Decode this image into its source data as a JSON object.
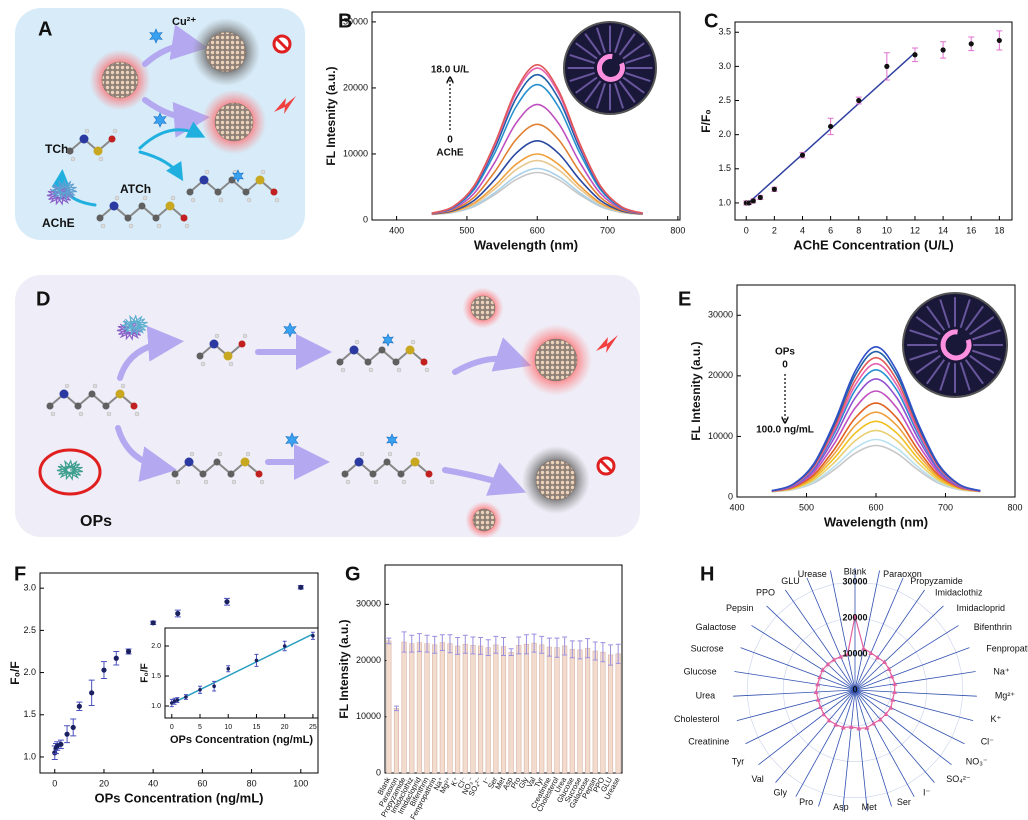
{
  "diagrams": [
    {
      "panel": "A",
      "labels": [
        "Cu²⁺",
        "TCh",
        "ATCh",
        "AChE"
      ]
    },
    {
      "panel": "D",
      "labels": [
        "OPs"
      ]
    }
  ],
  "chart_data": [
    {
      "type": "line",
      "panel": "B",
      "xlabel": "Wavelength (nm)",
      "ylabel": "FL Intesnity (a.u.)",
      "annotations": [
        "18.0 U/L",
        "0",
        "AChE"
      ],
      "xlim": [
        365,
        803
      ],
      "ylim": [
        0,
        31500
      ],
      "xticks": [
        400,
        500,
        600,
        700,
        800
      ],
      "yticks": [
        0,
        10000,
        20000,
        30000
      ],
      "x": [
        450,
        480,
        510,
        540,
        570,
        600,
        630,
        660,
        690,
        720,
        750
      ],
      "series": [
        {
          "color": "#c8c8c8",
          "values": [
            860,
            1140,
            2030,
            3870,
            6120,
            7200,
            6120,
            3870,
            2030,
            1140,
            860
          ]
        },
        {
          "color": "#a8d0e8",
          "values": [
            870,
            1170,
            2140,
            4160,
            6620,
            7800,
            6620,
            4160,
            2140,
            1170,
            870
          ]
        },
        {
          "color": "#e8c890",
          "values": [
            880,
            1230,
            2370,
            4740,
            7620,
            9000,
            7620,
            4740,
            2370,
            1230,
            880
          ]
        },
        {
          "color": "#f0a040",
          "values": [
            890,
            1290,
            2570,
            5220,
            8450,
            10000,
            8450,
            5220,
            2570,
            1290,
            890
          ]
        },
        {
          "color": "#2848a0",
          "values": [
            910,
            1390,
            2950,
            6180,
            10120,
            12000,
            10120,
            6180,
            2950,
            1390,
            910
          ]
        },
        {
          "color": "#e08030",
          "values": [
            940,
            1530,
            3430,
            7380,
            12200,
            14500,
            12200,
            7380,
            3430,
            1530,
            940
          ]
        },
        {
          "color": "#c050c0",
          "values": [
            970,
            1690,
            4010,
            8820,
            14690,
            17500,
            14690,
            8820,
            4010,
            1690,
            970
          ]
        },
        {
          "color": "#2890d0",
          "values": [
            1000,
            1840,
            4580,
            10260,
            17190,
            20500,
            17190,
            10260,
            4580,
            1840,
            1000
          ]
        },
        {
          "color": "#2060a8",
          "values": [
            1010,
            1920,
            4870,
            10980,
            18440,
            22000,
            18440,
            10980,
            4870,
            1920,
            1010
          ]
        },
        {
          "color": "#e860b0",
          "values": [
            1020,
            1980,
            5060,
            11460,
            19270,
            23000,
            19270,
            11460,
            5060,
            1980,
            1020
          ]
        },
        {
          "color": "#e05858",
          "values": [
            1030,
            2000,
            5160,
            11700,
            19690,
            23500,
            19690,
            11700,
            5160,
            2000,
            1030
          ]
        }
      ]
    },
    {
      "type": "scatter",
      "panel": "C",
      "xlabel": "AChE Concentration (U/L)",
      "ylabel": "F/F₀",
      "xlim": [
        -0.8,
        18.9
      ],
      "ylim": [
        0.75,
        3.65
      ],
      "xticks": [
        0,
        2,
        4,
        6,
        8,
        10,
        12,
        14,
        16,
        18
      ],
      "yticks": [
        {
          "value": 1,
          "label": "1.0"
        },
        {
          "value": 1.5,
          "label": "1.5"
        },
        {
          "value": 2,
          "label": "2.0"
        },
        {
          "value": 2.5,
          "label": "2.5"
        },
        {
          "value": 3,
          "label": "3.0"
        },
        {
          "value": 3.5,
          "label": "3.5"
        }
      ],
      "color": "#111111",
      "err_color": "#e070d0",
      "x": [
        0,
        0.2,
        0.5,
        1,
        2,
        4,
        6,
        8,
        10,
        12,
        14,
        16,
        18
      ],
      "y": [
        1.0,
        1.0,
        1.03,
        1.08,
        1.2,
        1.7,
        2.12,
        2.5,
        3.0,
        3.17,
        3.24,
        3.33,
        3.38
      ],
      "err": [
        0.03,
        0.02,
        0.03,
        0.03,
        0.03,
        0.04,
        0.12,
        0.05,
        0.2,
        0.1,
        0.12,
        0.1,
        0.14
      ],
      "fit": {
        "x": [
          0,
          12
        ],
        "y": [
          0.97,
          3.2
        ],
        "color": "#3040a0"
      }
    },
    {
      "type": "line",
      "panel": "E",
      "xlabel": "Wavelength (nm)",
      "ylabel": "FL Intesnity (a.u.)",
      "annotations": [
        "OPs",
        "0",
        "100.0 ng/mL"
      ],
      "xlim": [
        400,
        800
      ],
      "ylim": [
        0,
        35000
      ],
      "xticks": [
        400,
        500,
        600,
        700,
        800
      ],
      "yticks": [
        0,
        10000,
        20000,
        30000
      ],
      "x": [
        450,
        480,
        510,
        540,
        570,
        600,
        630,
        660,
        690,
        720,
        750
      ],
      "series": [
        {
          "color": "#c8c8c8",
          "values": [
            880,
            1210,
            2280,
            4500,
            7210,
            8500,
            7210,
            4500,
            2280,
            1210,
            880
          ]
        },
        {
          "color": "#b8e0f0",
          "values": [
            890,
            1260,
            2470,
            4980,
            8040,
            9500,
            8040,
            4980,
            2470,
            1260,
            890
          ]
        },
        {
          "color": "#e8d070",
          "values": [
            900,
            1340,
            2760,
            5700,
            9290,
            11000,
            9290,
            5700,
            2760,
            1340,
            900
          ]
        },
        {
          "color": "#f0c020",
          "values": [
            920,
            1420,
            3050,
            6420,
            10530,
            12500,
            10530,
            6420,
            3050,
            1420,
            920
          ]
        },
        {
          "color": "#f0a040",
          "values": [
            930,
            1500,
            3330,
            7140,
            11780,
            14000,
            11780,
            7140,
            3330,
            1500,
            930
          ]
        },
        {
          "color": "#e06020",
          "values": [
            950,
            1580,
            3620,
            7860,
            13030,
            15500,
            13030,
            7860,
            3620,
            1580,
            950
          ]
        },
        {
          "color": "#c050c0",
          "values": [
            970,
            1690,
            4010,
            8820,
            14690,
            17500,
            14690,
            8820,
            4010,
            1690,
            970
          ]
        },
        {
          "color": "#9050d0",
          "values": [
            990,
            1790,
            4390,
            9780,
            16360,
            19500,
            16360,
            9780,
            4390,
            1790,
            990
          ]
        },
        {
          "color": "#2890d0",
          "values": [
            1000,
            1870,
            4680,
            10500,
            17610,
            21000,
            17610,
            10500,
            4680,
            1870,
            1000
          ]
        },
        {
          "color": "#e860b0",
          "values": [
            1010,
            1920,
            4870,
            10980,
            18440,
            22000,
            18440,
            10980,
            4870,
            1920,
            1010
          ]
        },
        {
          "color": "#e05858",
          "values": [
            1020,
            1980,
            5060,
            11460,
            19270,
            23000,
            19270,
            11460,
            5060,
            1980,
            1020
          ]
        },
        {
          "color": "#2060a8",
          "values": [
            1030,
            2030,
            5250,
            11940,
            20100,
            24000,
            20100,
            11940,
            5250,
            2030,
            1030
          ]
        },
        {
          "color": "#3050c8",
          "values": [
            1040,
            2070,
            5410,
            12320,
            20770,
            24800,
            20770,
            12320,
            5410,
            2070,
            1040
          ]
        }
      ]
    },
    {
      "type": "scatter",
      "panel": "F",
      "xlabel": "OPs Concentration (ng/mL)",
      "ylabel": "F₀/F",
      "xlim": [
        -6,
        107
      ],
      "ylim": [
        0.81,
        3.18
      ],
      "xticks": [
        0,
        20,
        40,
        60,
        80,
        100
      ],
      "yticks": [
        {
          "value": 1,
          "label": "1.0"
        },
        {
          "value": 1.5,
          "label": "1.5"
        },
        {
          "value": 2,
          "label": "2.0"
        },
        {
          "value": 2.5,
          "label": "2.5"
        },
        {
          "value": 3,
          "label": "3.0"
        }
      ],
      "color": "#1a2060",
      "err_color": "#4a50c0",
      "x": [
        0,
        0.5,
        1,
        2.5,
        5,
        7.5,
        10,
        15,
        20,
        25,
        30,
        40,
        50,
        70,
        100
      ],
      "y": [
        1.05,
        1.1,
        1.13,
        1.15,
        1.27,
        1.35,
        1.6,
        1.76,
        2.03,
        2.17,
        2.25,
        2.59,
        2.7,
        2.84,
        3.01
      ],
      "err": [
        0.08,
        0.06,
        0.05,
        0.05,
        0.1,
        0.1,
        0.05,
        0.15,
        0.1,
        0.08,
        0.03,
        0.02,
        0.04,
        0.04,
        0.02
      ]
    },
    {
      "type": "scatter",
      "xlabel": "OPs Concentration (ng/mL)",
      "ylabel": "F₀/F",
      "xlim": [
        -1.2,
        25.9
      ],
      "ylim": [
        0.8,
        2.3
      ],
      "xticks": [
        0,
        5,
        10,
        15,
        20,
        25
      ],
      "yticks": [
        {
          "value": 1,
          "label": "1.0"
        },
        {
          "value": 1.5,
          "label": "1.5"
        },
        {
          "value": 2,
          "label": "2.0"
        }
      ],
      "color": "#1a2060",
      "err_color": "#4a50c0",
      "x": [
        0,
        0.5,
        1,
        2.5,
        5,
        7.5,
        10,
        15,
        20,
        25
      ],
      "y": [
        1.05,
        1.08,
        1.1,
        1.15,
        1.27,
        1.33,
        1.62,
        1.76,
        2.0,
        2.17
      ],
      "err": [
        0.06,
        0.05,
        0.04,
        0.04,
        0.06,
        0.08,
        0.05,
        0.1,
        0.08,
        0.06
      ],
      "fit": {
        "x": [
          0,
          25
        ],
        "y": [
          1.04,
          2.2
        ],
        "color": "#2a9ec0"
      }
    },
    {
      "type": "bar",
      "panel": "G",
      "ylabel": "FL Intensity (a.u.)",
      "ylim": [
        0,
        37000
      ],
      "yticks": [
        0,
        10000,
        20000,
        30000
      ],
      "color": "#f3dccd",
      "err_color": "#9b8fe0",
      "categories": [
        "Blank",
        "Paraoxon",
        "Propyzamide",
        "Imidaclothiz",
        "Imidacloprid",
        "Bifenthrin",
        "Fenpropathrin",
        "Na⁺",
        "Mg²⁺",
        "K⁺",
        "Cl⁻",
        "NO₃⁻",
        "SO₄²⁻",
        "I⁻",
        "Ser",
        "Met",
        "Asp",
        "Pro",
        "Gly",
        "Val",
        "Tyr",
        "Creatinine",
        "Cholesterol",
        "Urea",
        "Glucose",
        "Sucrose",
        "Galactose",
        "Pepsin",
        "PPO",
        "GLU",
        "Urease"
      ],
      "values": [
        23500,
        11500,
        23300,
        23000,
        23200,
        23000,
        22800,
        23200,
        23000,
        22600,
        22900,
        22700,
        22600,
        22300,
        22800,
        22500,
        21500,
        22700,
        22900,
        23100,
        22800,
        22400,
        22300,
        22600,
        22000,
        21900,
        22200,
        21700,
        21500,
        21000,
        21200
      ],
      "err": [
        500,
        400,
        1800,
        1500,
        1600,
        1500,
        1500,
        1400,
        1600,
        1500,
        1600,
        1500,
        1500,
        1400,
        1500,
        1600,
        600,
        1500,
        1700,
        1600,
        1500,
        1600,
        1700,
        1600,
        1500,
        1600,
        1700,
        1600,
        1700,
        1800,
        1700
      ]
    },
    {
      "type": "radar",
      "panel": "H",
      "rlim": [
        0,
        30000
      ],
      "rticks": [
        0,
        10000,
        20000,
        30000
      ],
      "color": "#e060a0",
      "spoke_color": "#3050b0",
      "categories": [
        "Blank",
        "Paraoxon",
        "Propyzamide",
        "Imidaclothiz",
        "Imidacloprid",
        "Bifenthrin",
        "Fenpropathrin",
        "Na⁺",
        "Mg²⁺",
        "K⁺",
        "Cl⁻",
        "NO₃⁻",
        "SO₄²⁻",
        "I⁻",
        "Ser",
        "Met",
        "Asp",
        "Pro",
        "Gly",
        "Val",
        "Tyr",
        "Creatinine",
        "Cholesterol",
        "Urea",
        "Glucose",
        "Sucrose",
        "Galactose",
        "Pepsin",
        "PPO",
        "GLU",
        "Urease"
      ],
      "label_colors": [
        "#000000",
        "#e02020",
        "#e08a2a",
        "#e08a2a",
        "#e08a2a",
        "#e08a2a",
        "#e08a2a",
        "#2aa0d0",
        "#2aa0d0",
        "#2aa0d0",
        "#2aa0d0",
        "#2aa0d0",
        "#2aa0d0",
        "#2aa0d0",
        "#d08a30",
        "#d08a30",
        "#d08a30",
        "#d08a30",
        "#d08a30",
        "#d08a30",
        "#d08a30",
        "#d0409a",
        "#d0409a",
        "#d0409a",
        "#d0409a",
        "#d0409a",
        "#d0409a",
        "#3aa8d8",
        "#3aa8d8",
        "#3aa8d8",
        "#3aa8d8"
      ],
      "values": [
        20500,
        11800,
        11200,
        11000,
        11300,
        11100,
        10900,
        11200,
        11000,
        10800,
        11100,
        10900,
        10800,
        10600,
        11000,
        10700,
        10300,
        10900,
        11000,
        11100,
        11000,
        10700,
        10600,
        10800,
        10500,
        10400,
        10600,
        10400,
        10300,
        10100,
        10200
      ]
    }
  ]
}
